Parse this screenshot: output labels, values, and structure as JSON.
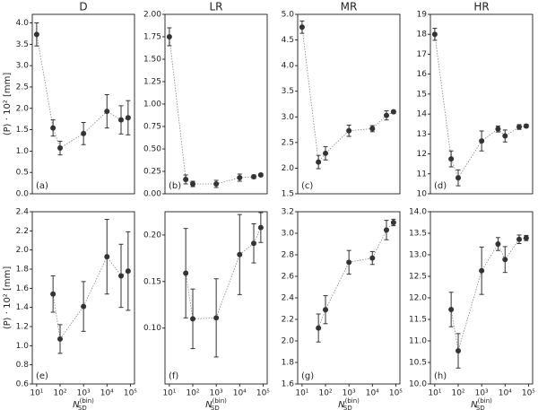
{
  "chart_data": [
    {
      "type": "errorbar",
      "title": "D",
      "ylabel": "⟨P⟩ · 10² [mm]",
      "annotation": "(a)",
      "color": "#333333",
      "line_style": "dotted",
      "xscale": "log",
      "x": [
        10,
        50,
        100,
        1000,
        10000,
        40000,
        80000
      ],
      "values": [
        3.73,
        1.54,
        1.07,
        1.41,
        1.93,
        1.73,
        1.78
      ],
      "errors": [
        0.27,
        0.19,
        0.16,
        0.26,
        0.39,
        0.33,
        0.4
      ],
      "xlim": [
        6.5,
        150000
      ],
      "ylim": [
        0,
        4.2
      ],
      "yticks": [
        {
          "value": 0,
          "label": "0.0"
        },
        0.5,
        {
          "value": 1,
          "label": "1.0"
        },
        1.5,
        {
          "value": 2,
          "label": "2.0"
        },
        2.5,
        {
          "value": 3,
          "label": "3.0"
        },
        3.5,
        {
          "value": 4,
          "label": "4.0"
        }
      ]
    },
    {
      "type": "errorbar",
      "title": "LR",
      "annotation": "(b)",
      "color": "#333333",
      "line_style": "dotted",
      "xscale": "log",
      "x": [
        10,
        50,
        100,
        1000,
        10000,
        40000,
        80000
      ],
      "values": [
        1.75,
        0.16,
        0.11,
        0.11,
        0.18,
        0.19,
        0.21
      ],
      "errors": [
        0.1,
        0.05,
        0.03,
        0.04,
        0.04,
        0.02,
        0.015
      ],
      "xlim": [
        6.5,
        150000
      ],
      "ylim": [
        0,
        2.0
      ],
      "yticks": [
        {
          "value": 0,
          "label": "0.00"
        },
        0.25,
        {
          "value": 0.5,
          "label": "0.50"
        },
        0.75,
        {
          "value": 1,
          "label": "1.00"
        },
        1.25,
        {
          "value": 1.5,
          "label": "1.50"
        },
        1.75,
        {
          "value": 2,
          "label": "2.00"
        }
      ]
    },
    {
      "type": "errorbar",
      "title": "MR",
      "annotation": "(c)",
      "color": "#333333",
      "line_style": "dotted",
      "xscale": "log",
      "x": [
        10,
        50,
        100,
        1000,
        10000,
        40000,
        80000
      ],
      "values": [
        4.75,
        2.12,
        2.29,
        2.73,
        2.77,
        3.03,
        3.1
      ],
      "errors": [
        0.12,
        0.13,
        0.13,
        0.11,
        0.06,
        0.09,
        0.03
      ],
      "xlim": [
        6.5,
        150000
      ],
      "ylim": [
        1.5,
        5.0
      ],
      "yticks": [
        1.5,
        {
          "value": 2,
          "label": "2.0"
        },
        2.5,
        {
          "value": 3,
          "label": "3.0"
        },
        3.5,
        {
          "value": 4,
          "label": "4.0"
        },
        4.5,
        {
          "value": 5,
          "label": "5.0"
        }
      ]
    },
    {
      "type": "errorbar",
      "title": "HR",
      "annotation": "(d)",
      "color": "#333333",
      "line_style": "dotted",
      "xscale": "log",
      "x": [
        10,
        50,
        100,
        1000,
        5000,
        10000,
        40000,
        80000
      ],
      "values": [
        18.0,
        11.75,
        10.8,
        12.65,
        13.25,
        12.9,
        13.35,
        13.4
      ],
      "errors": [
        0.3,
        0.4,
        0.4,
        0.5,
        0.15,
        0.3,
        0.12,
        0.08
      ],
      "xlim": [
        6.5,
        150000
      ],
      "ylim": [
        10,
        19
      ],
      "yticks": [
        10,
        11,
        12,
        13,
        14,
        15,
        16,
        17,
        18,
        19
      ]
    },
    {
      "type": "errorbar",
      "ylabel": "⟨P⟩ · 10² [mm]",
      "xlabel": {
        "base": "N",
        "sub": "SD",
        "sup": "(bin)"
      },
      "annotation": "(e)",
      "color": "#333333",
      "line_style": "dotted",
      "xscale": "log",
      "x": [
        50,
        100,
        1000,
        10000,
        40000,
        80000
      ],
      "values": [
        1.54,
        1.07,
        1.41,
        1.93,
        1.73,
        1.78
      ],
      "errors": [
        0.19,
        0.15,
        0.26,
        0.39,
        0.33,
        0.41
      ],
      "xlim": [
        6.5,
        150000
      ],
      "ylim": [
        0.6,
        2.4
      ],
      "xticks": [
        {
          "value": 10,
          "label": "10¹"
        },
        {
          "value": 100,
          "label": "10²"
        },
        {
          "value": 1000,
          "label": "10³"
        },
        {
          "value": 10000,
          "label": "10⁴"
        },
        {
          "value": 100000,
          "label": "10⁵"
        }
      ],
      "yticks": [
        0.6,
        0.8,
        {
          "value": 1,
          "label": "1.0"
        },
        1.2,
        1.4,
        1.6,
        1.8,
        {
          "value": 2,
          "label": "2.0"
        },
        2.2,
        2.4
      ]
    },
    {
      "type": "errorbar",
      "xlabel": {
        "base": "N",
        "sub": "SD",
        "sup": "(bin)"
      },
      "annotation": "(f)",
      "color": "#333333",
      "line_style": "dotted",
      "xscale": "log",
      "x": [
        50,
        100,
        1000,
        10000,
        40000,
        80000
      ],
      "values": [
        0.159,
        0.11,
        0.111,
        0.179,
        0.191,
        0.208
      ],
      "errors": [
        0.048,
        0.032,
        0.042,
        0.043,
        0.021,
        0.016
      ],
      "xlim": [
        6.5,
        150000
      ],
      "ylim": [
        0.04,
        0.225
      ],
      "xticks": [
        {
          "value": 10,
          "label": "10¹"
        },
        {
          "value": 100,
          "label": "10²"
        },
        {
          "value": 1000,
          "label": "10³"
        },
        {
          "value": 10000,
          "label": "10⁴"
        },
        {
          "value": 100000,
          "label": "10⁵"
        }
      ],
      "yticks": [
        {
          "value": 0.1,
          "label": "0.10"
        },
        {
          "value": 0.15,
          "label": "0.15"
        },
        {
          "value": 0.2,
          "label": "0.20"
        }
      ]
    },
    {
      "type": "errorbar",
      "xlabel": {
        "base": "N",
        "sub": "SD",
        "sup": "(bin)"
      },
      "annotation": "(g)",
      "color": "#333333",
      "line_style": "dotted",
      "xscale": "log",
      "x": [
        50,
        100,
        1000,
        10000,
        40000,
        80000
      ],
      "values": [
        2.12,
        2.29,
        2.73,
        2.77,
        3.03,
        3.1
      ],
      "errors": [
        0.13,
        0.13,
        0.11,
        0.06,
        0.09,
        0.03
      ],
      "xlim": [
        6.5,
        150000
      ],
      "ylim": [
        1.6,
        3.2
      ],
      "xticks": [
        {
          "value": 10,
          "label": "10¹"
        },
        {
          "value": 100,
          "label": "10²"
        },
        {
          "value": 1000,
          "label": "10³"
        },
        {
          "value": 10000,
          "label": "10⁴"
        },
        {
          "value": 100000,
          "label": "10⁵"
        }
      ],
      "yticks": [
        1.6,
        1.8,
        {
          "value": 2,
          "label": "2.0"
        },
        2.2,
        2.4,
        2.6,
        2.8,
        {
          "value": 3,
          "label": "3.0"
        },
        3.2
      ]
    },
    {
      "type": "errorbar",
      "xlabel": {
        "base": "N",
        "sub": "SD",
        "sup": "(bin)"
      },
      "annotation": "(h)",
      "color": "#333333",
      "line_style": "dotted",
      "xscale": "log",
      "x": [
        50,
        100,
        1000,
        5000,
        10000,
        40000,
        80000
      ],
      "values": [
        11.73,
        10.77,
        12.63,
        13.25,
        12.89,
        13.36,
        13.39
      ],
      "errors": [
        0.4,
        0.4,
        0.55,
        0.15,
        0.3,
        0.1,
        0.06
      ],
      "xlim": [
        6.5,
        150000
      ],
      "ylim": [
        10,
        14
      ],
      "xticks": [
        {
          "value": 10,
          "label": "10¹"
        },
        {
          "value": 100,
          "label": "10²"
        },
        {
          "value": 1000,
          "label": "10³"
        },
        {
          "value": 10000,
          "label": "10⁴"
        },
        {
          "value": 100000,
          "label": "10⁵"
        }
      ],
      "yticks": [
        {
          "value": 10,
          "label": "10.0"
        },
        10.5,
        {
          "value": 11,
          "label": "11.0"
        },
        11.5,
        {
          "value": 12,
          "label": "12.0"
        },
        12.5,
        {
          "value": 13,
          "label": "13.0"
        },
        13.5,
        {
          "value": 14,
          "label": "14.0"
        }
      ]
    }
  ]
}
